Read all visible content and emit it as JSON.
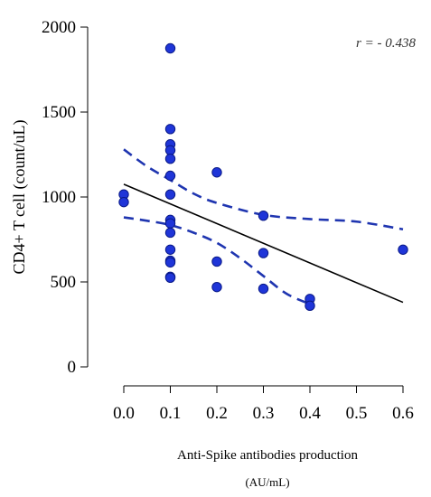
{
  "chart_data": {
    "type": "scatter",
    "title": "",
    "xlabel": "Anti-Spike antibodies production",
    "xlabel_unit": "(AU/mL)",
    "ylabel": "CD4+ T cell (count/uL)",
    "xlim": [
      -0.01,
      0.61
    ],
    "ylim": [
      0,
      2000
    ],
    "x_ticks": [
      0.0,
      0.1,
      0.2,
      0.3,
      0.4,
      0.5,
      0.6
    ],
    "x_tick_labels": [
      "0.0",
      "0.1",
      "0.2",
      "0.3",
      "0.4",
      "0.5",
      "0.6"
    ],
    "y_ticks": [
      0,
      500,
      1000,
      1500,
      2000
    ],
    "y_tick_labels": [
      "0",
      "500",
      "1000",
      "1500",
      "2000"
    ],
    "grid": false,
    "legend": "none",
    "annotation": "r = - 0.438",
    "points": [
      {
        "x": 0.0,
        "y": 1015
      },
      {
        "x": 0.0,
        "y": 970
      },
      {
        "x": 0.1,
        "y": 1875
      },
      {
        "x": 0.1,
        "y": 1400
      },
      {
        "x": 0.1,
        "y": 1310
      },
      {
        "x": 0.1,
        "y": 1275
      },
      {
        "x": 0.1,
        "y": 1225
      },
      {
        "x": 0.1,
        "y": 1125
      },
      {
        "x": 0.1,
        "y": 1015
      },
      {
        "x": 0.1,
        "y": 865
      },
      {
        "x": 0.1,
        "y": 845
      },
      {
        "x": 0.1,
        "y": 790
      },
      {
        "x": 0.1,
        "y": 690
      },
      {
        "x": 0.1,
        "y": 625
      },
      {
        "x": 0.1,
        "y": 615
      },
      {
        "x": 0.1,
        "y": 530
      },
      {
        "x": 0.1,
        "y": 525
      },
      {
        "x": 0.2,
        "y": 1145
      },
      {
        "x": 0.2,
        "y": 620
      },
      {
        "x": 0.2,
        "y": 470
      },
      {
        "x": 0.3,
        "y": 890
      },
      {
        "x": 0.3,
        "y": 670
      },
      {
        "x": 0.3,
        "y": 460
      },
      {
        "x": 0.4,
        "y": 400
      },
      {
        "x": 0.4,
        "y": 360
      },
      {
        "x": 0.6,
        "y": 690
      }
    ],
    "fit_line": [
      {
        "x": 0.0,
        "y": 1075
      },
      {
        "x": 0.6,
        "y": 380
      }
    ],
    "ci_upper": [
      {
        "x": 0.0,
        "y": 1280
      },
      {
        "x": 0.05,
        "y": 1180
      },
      {
        "x": 0.1,
        "y": 1100
      },
      {
        "x": 0.15,
        "y": 1020
      },
      {
        "x": 0.2,
        "y": 965
      },
      {
        "x": 0.3,
        "y": 895
      },
      {
        "x": 0.4,
        "y": 870
      },
      {
        "x": 0.5,
        "y": 855
      },
      {
        "x": 0.6,
        "y": 810
      }
    ],
    "ci_lower": [
      {
        "x": 0.0,
        "y": 880
      },
      {
        "x": 0.05,
        "y": 860
      },
      {
        "x": 0.1,
        "y": 835
      },
      {
        "x": 0.15,
        "y": 790
      },
      {
        "x": 0.2,
        "y": 730
      },
      {
        "x": 0.25,
        "y": 640
      },
      {
        "x": 0.3,
        "y": 535
      },
      {
        "x": 0.35,
        "y": 430
      },
      {
        "x": 0.4,
        "y": 370
      }
    ],
    "colors": {
      "point_fill": "#1f35d8",
      "point_stroke": "#0a1a88",
      "ci_line": "#1f35b0",
      "fit_line": "#000000"
    }
  }
}
